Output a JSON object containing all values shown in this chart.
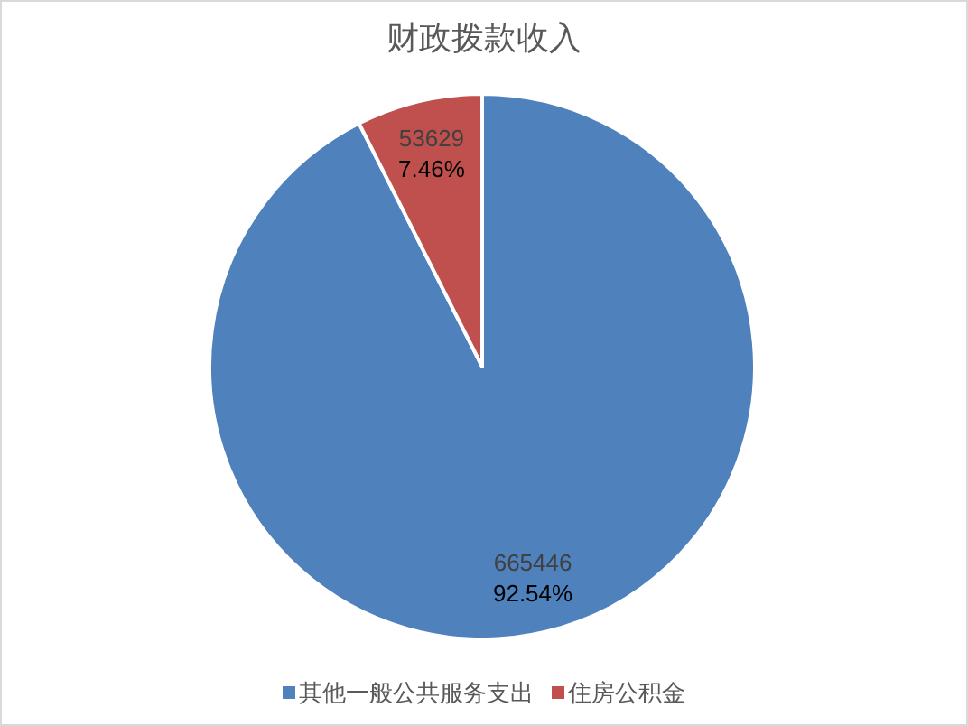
{
  "chart_data": {
    "type": "pie",
    "title": "财政拨款收入",
    "categories": [
      "其他一般公共服务支出",
      "住房公积金"
    ],
    "values": [
      665446,
      53629
    ],
    "colors": [
      "#4f81bd",
      "#c0504d"
    ],
    "value_labels": [
      "665446\n92.54%",
      "53629\n7.46%"
    ],
    "legend": "bottom"
  }
}
